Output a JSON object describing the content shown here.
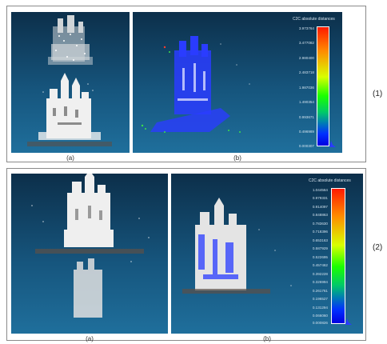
{
  "rows": [
    {
      "index_label": "(1)",
      "left_label": "(a)",
      "right_label": "(b)",
      "scale_title": "C2C absolute distances",
      "scale_ticks": [
        "3.973764",
        "3.477082",
        "2.980400",
        "2.483718",
        "1.987036",
        "1.490354",
        "0.993671",
        "0.496989",
        "0.000307"
      ]
    },
    {
      "index_label": "(2)",
      "left_label": "(a)",
      "right_label": "(b)",
      "scale_title": "C2C absolute distances",
      "scale_ticks": [
        "1.044564",
        "0.979331",
        "0.914097",
        "0.848863",
        "0.783630",
        "0.718396",
        "0.653163",
        "0.587929",
        "0.522695",
        "0.457462",
        "0.392228",
        "0.326994",
        "0.261761",
        "0.196527",
        "0.131294",
        "0.066060",
        "0.000826"
      ]
    }
  ],
  "colors": {
    "panel_bg_top": "#0c2f4a",
    "panel_bg_bottom": "#1f6f9c",
    "cloud_white": "#e8e8e8",
    "cloud_blue": "#2a3cff"
  }
}
